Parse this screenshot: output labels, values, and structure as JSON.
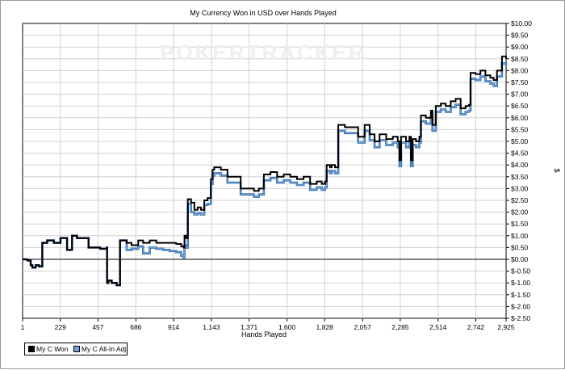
{
  "chart_data": {
    "type": "line",
    "title": "My Currency Won in USD over Hands Played",
    "xlabel": "Hands Played",
    "ylabel": "$",
    "watermark": "POKERTRACKER",
    "xlim": [
      1,
      2925
    ],
    "ylim": [
      -2.5,
      10
    ],
    "x_ticks": [
      1,
      229,
      457,
      686,
      914,
      1143,
      1371,
      1600,
      1828,
      2057,
      2285,
      2514,
      2742,
      2925
    ],
    "x_tick_labels": [
      "1",
      "229",
      "457",
      "686",
      "914",
      "1,143",
      "1,371",
      "1,600",
      "1,828",
      "2,057",
      "2,285",
      "2,514",
      "2,742",
      "2,925"
    ],
    "y_ticks": [
      -2.5,
      -2,
      -1.5,
      -1,
      -0.5,
      0,
      0.5,
      1,
      1.5,
      2,
      2.5,
      3,
      3.5,
      4,
      4.5,
      5,
      5.5,
      6,
      6.5,
      7,
      7.5,
      8,
      8.5,
      9,
      9.5,
      10
    ],
    "y_tick_labels": [
      "$-2.50",
      "$-2.00",
      "$-1.50",
      "$-1.00",
      "$-0.50",
      "$0.00",
      "$0.50",
      "$1.00",
      "$1.50",
      "$2.00",
      "$2.50",
      "$3.00",
      "$3.50",
      "$4.00",
      "$4.50",
      "$5.00",
      "$5.50",
      "$6.00",
      "$6.50",
      "$7.00",
      "$7.50",
      "$8.00",
      "$8.50",
      "$9.00",
      "$9.50",
      "$10.00"
    ],
    "grid": true,
    "legend": "bottom-left",
    "colors": {
      "won": "#000000",
      "allin": "#6aa3e0",
      "grid": "#d0d0d0"
    },
    "series": [
      {
        "name": "My C Won",
        "color": "#000000",
        "points": [
          [
            1,
            0
          ],
          [
            30,
            -0.05
          ],
          [
            50,
            -0.25
          ],
          [
            60,
            -0.35
          ],
          [
            80,
            -0.25
          ],
          [
            100,
            -0.3
          ],
          [
            118,
            -0.3
          ],
          [
            120,
            0.7
          ],
          [
            150,
            0.8
          ],
          [
            190,
            0.7
          ],
          [
            230,
            0.9
          ],
          [
            265,
            0.9
          ],
          [
            270,
            0.4
          ],
          [
            300,
            1.0
          ],
          [
            330,
            0.9
          ],
          [
            370,
            0.9
          ],
          [
            400,
            0.5
          ],
          [
            440,
            0.5
          ],
          [
            470,
            0.45
          ],
          [
            500,
            0.45
          ],
          [
            510,
            0.5
          ],
          [
            512,
            -1.0
          ],
          [
            520,
            -0.9
          ],
          [
            540,
            -1.0
          ],
          [
            570,
            -1.1
          ],
          [
            585,
            -1.1
          ],
          [
            590,
            0.8
          ],
          [
            630,
            0.7
          ],
          [
            660,
            0.6
          ],
          [
            700,
            0.8
          ],
          [
            730,
            0.7
          ],
          [
            770,
            0.8
          ],
          [
            810,
            0.7
          ],
          [
            850,
            0.7
          ],
          [
            890,
            0.7
          ],
          [
            930,
            0.65
          ],
          [
            960,
            0.55
          ],
          [
            975,
            0.5
          ],
          [
            980,
            1.0
          ],
          [
            990,
            0.9
          ],
          [
            1000,
            2.55
          ],
          [
            1020,
            2.4
          ],
          [
            1040,
            2.1
          ],
          [
            1060,
            2.2
          ],
          [
            1080,
            2.1
          ],
          [
            1100,
            2.5
          ],
          [
            1120,
            2.6
          ],
          [
            1140,
            3.4
          ],
          [
            1150,
            3.8
          ],
          [
            1160,
            3.9
          ],
          [
            1200,
            3.8
          ],
          [
            1240,
            3.5
          ],
          [
            1280,
            3.5
          ],
          [
            1320,
            3.0
          ],
          [
            1360,
            3.0
          ],
          [
            1400,
            2.9
          ],
          [
            1430,
            3.0
          ],
          [
            1450,
            3.0
          ],
          [
            1460,
            3.6
          ],
          [
            1500,
            3.7
          ],
          [
            1540,
            3.5
          ],
          [
            1580,
            3.6
          ],
          [
            1620,
            3.5
          ],
          [
            1660,
            3.4
          ],
          [
            1700,
            3.5
          ],
          [
            1740,
            3.2
          ],
          [
            1780,
            3.3
          ],
          [
            1810,
            3.2
          ],
          [
            1830,
            3.3
          ],
          [
            1840,
            4.0
          ],
          [
            1860,
            3.9
          ],
          [
            1870,
            4.0
          ],
          [
            1890,
            3.9
          ],
          [
            1910,
            5.7
          ],
          [
            1950,
            5.6
          ],
          [
            1990,
            5.6
          ],
          [
            2030,
            5.2
          ],
          [
            2070,
            5.7
          ],
          [
            2100,
            5.3
          ],
          [
            2130,
            5.0
          ],
          [
            2160,
            5.3
          ],
          [
            2200,
            5.1
          ],
          [
            2240,
            5.2
          ],
          [
            2270,
            5.0
          ],
          [
            2280,
            4.2
          ],
          [
            2290,
            5.2
          ],
          [
            2320,
            5.0
          ],
          [
            2340,
            5.2
          ],
          [
            2350,
            4.2
          ],
          [
            2360,
            5.1
          ],
          [
            2380,
            5.0
          ],
          [
            2400,
            5.2
          ],
          [
            2410,
            6.1
          ],
          [
            2440,
            6.0
          ],
          [
            2470,
            6.3
          ],
          [
            2480,
            5.7
          ],
          [
            2500,
            6.5
          ],
          [
            2530,
            6.6
          ],
          [
            2560,
            6.5
          ],
          [
            2590,
            6.7
          ],
          [
            2620,
            6.8
          ],
          [
            2650,
            6.4
          ],
          [
            2680,
            6.5
          ],
          [
            2700,
            6.55
          ],
          [
            2710,
            7.9
          ],
          [
            2740,
            7.85
          ],
          [
            2770,
            8.0
          ],
          [
            2800,
            7.8
          ],
          [
            2830,
            7.7
          ],
          [
            2850,
            7.6
          ],
          [
            2870,
            8.0
          ],
          [
            2880,
            8.0
          ],
          [
            2900,
            8.6
          ],
          [
            2925,
            8.5
          ]
        ]
      },
      {
        "name": "My C All-In Adj",
        "color": "#6aa3e0",
        "points": [
          [
            1,
            0
          ],
          [
            30,
            -0.05
          ],
          [
            50,
            -0.25
          ],
          [
            60,
            -0.35
          ],
          [
            80,
            -0.25
          ],
          [
            100,
            -0.3
          ],
          [
            118,
            -0.3
          ],
          [
            120,
            0.7
          ],
          [
            150,
            0.8
          ],
          [
            190,
            0.7
          ],
          [
            230,
            0.9
          ],
          [
            265,
            0.9
          ],
          [
            270,
            0.4
          ],
          [
            300,
            1.0
          ],
          [
            330,
            0.9
          ],
          [
            370,
            0.9
          ],
          [
            400,
            0.5
          ],
          [
            440,
            0.5
          ],
          [
            470,
            0.45
          ],
          [
            500,
            0.45
          ],
          [
            510,
            0.5
          ],
          [
            512,
            -1.0
          ],
          [
            520,
            -0.9
          ],
          [
            540,
            -1.0
          ],
          [
            570,
            -1.1
          ],
          [
            585,
            -1.1
          ],
          [
            590,
            0.8
          ],
          [
            630,
            0.4
          ],
          [
            660,
            0.45
          ],
          [
            700,
            0.55
          ],
          [
            730,
            0.25
          ],
          [
            770,
            0.5
          ],
          [
            810,
            0.45
          ],
          [
            850,
            0.4
          ],
          [
            890,
            0.35
          ],
          [
            930,
            0.3
          ],
          [
            960,
            0.15
          ],
          [
            975,
            0.05
          ],
          [
            980,
            0.6
          ],
          [
            990,
            0.5
          ],
          [
            1000,
            2.35
          ],
          [
            1020,
            2.0
          ],
          [
            1040,
            1.9
          ],
          [
            1060,
            1.95
          ],
          [
            1080,
            1.9
          ],
          [
            1100,
            2.3
          ],
          [
            1120,
            2.35
          ],
          [
            1140,
            3.2
          ],
          [
            1150,
            3.55
          ],
          [
            1160,
            3.65
          ],
          [
            1200,
            3.55
          ],
          [
            1240,
            3.25
          ],
          [
            1280,
            3.25
          ],
          [
            1320,
            2.75
          ],
          [
            1360,
            2.75
          ],
          [
            1400,
            2.65
          ],
          [
            1430,
            2.75
          ],
          [
            1450,
            2.75
          ],
          [
            1460,
            3.35
          ],
          [
            1500,
            3.45
          ],
          [
            1540,
            3.25
          ],
          [
            1580,
            3.35
          ],
          [
            1620,
            3.25
          ],
          [
            1660,
            3.15
          ],
          [
            1700,
            3.25
          ],
          [
            1740,
            2.95
          ],
          [
            1780,
            3.05
          ],
          [
            1810,
            2.95
          ],
          [
            1830,
            3.05
          ],
          [
            1840,
            3.75
          ],
          [
            1860,
            3.65
          ],
          [
            1870,
            3.75
          ],
          [
            1890,
            3.65
          ],
          [
            1910,
            5.45
          ],
          [
            1950,
            5.35
          ],
          [
            1990,
            5.35
          ],
          [
            2030,
            4.95
          ],
          [
            2070,
            5.45
          ],
          [
            2100,
            5.05
          ],
          [
            2130,
            4.75
          ],
          [
            2160,
            5.05
          ],
          [
            2200,
            4.85
          ],
          [
            2240,
            4.95
          ],
          [
            2270,
            4.75
          ],
          [
            2280,
            3.95
          ],
          [
            2290,
            4.95
          ],
          [
            2320,
            4.75
          ],
          [
            2340,
            4.95
          ],
          [
            2350,
            3.95
          ],
          [
            2360,
            4.85
          ],
          [
            2380,
            4.75
          ],
          [
            2400,
            4.95
          ],
          [
            2410,
            5.85
          ],
          [
            2440,
            5.75
          ],
          [
            2470,
            6.05
          ],
          [
            2480,
            5.45
          ],
          [
            2500,
            6.25
          ],
          [
            2530,
            6.35
          ],
          [
            2560,
            6.25
          ],
          [
            2590,
            6.45
          ],
          [
            2620,
            6.55
          ],
          [
            2650,
            6.15
          ],
          [
            2680,
            6.25
          ],
          [
            2700,
            6.3
          ],
          [
            2710,
            7.65
          ],
          [
            2740,
            7.6
          ],
          [
            2770,
            7.75
          ],
          [
            2800,
            7.55
          ],
          [
            2830,
            7.45
          ],
          [
            2850,
            7.35
          ],
          [
            2870,
            7.75
          ],
          [
            2880,
            7.75
          ],
          [
            2900,
            8.3
          ],
          [
            2925,
            8.2
          ]
        ]
      }
    ]
  }
}
